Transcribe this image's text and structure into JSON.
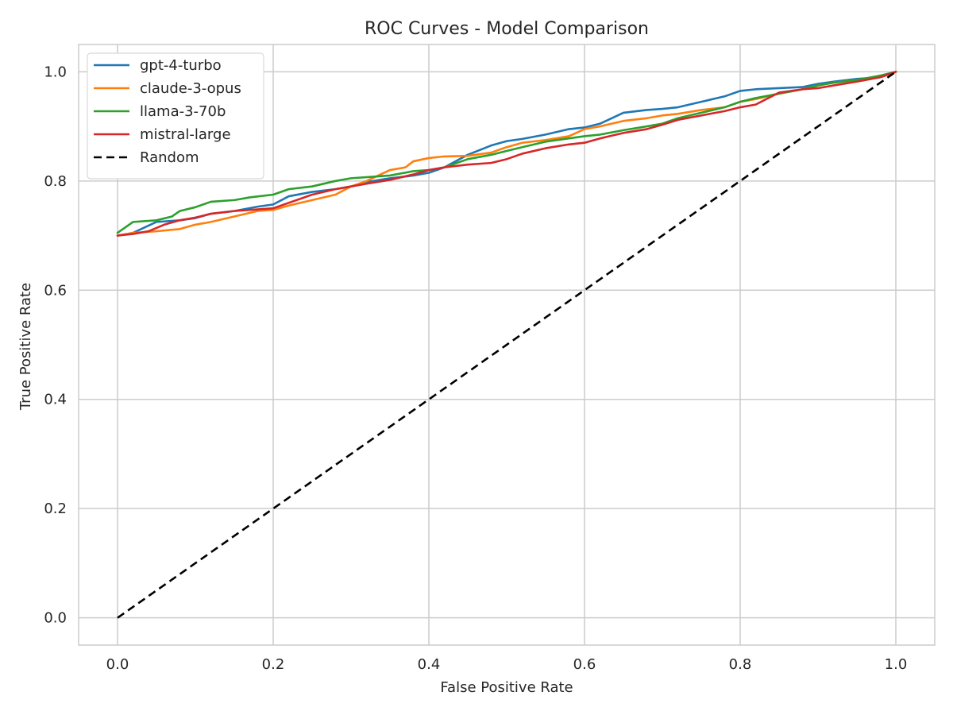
{
  "chart_data": {
    "type": "line",
    "title": "ROC Curves - Model Comparison",
    "xlabel": "False Positive Rate",
    "ylabel": "True Positive Rate",
    "xlim": [
      -0.05,
      1.05
    ],
    "ylim": [
      -0.05,
      1.05
    ],
    "xticks": [
      0.0,
      0.2,
      0.4,
      0.6,
      0.8,
      1.0
    ],
    "yticks": [
      0.0,
      0.2,
      0.4,
      0.6,
      0.8,
      1.0
    ],
    "xtick_labels": [
      "0.0",
      "0.2",
      "0.4",
      "0.6",
      "0.8",
      "1.0"
    ],
    "ytick_labels": [
      "0.0",
      "0.2",
      "0.4",
      "0.6",
      "0.8",
      "1.0"
    ],
    "grid": true,
    "legend_position": "top-left",
    "series": [
      {
        "name": "gpt-4-turbo",
        "color": "#1f77b4",
        "style": "solid",
        "x": [
          0.0,
          0.02,
          0.05,
          0.08,
          0.1,
          0.12,
          0.15,
          0.18,
          0.2,
          0.22,
          0.25,
          0.28,
          0.3,
          0.32,
          0.35,
          0.38,
          0.4,
          0.42,
          0.45,
          0.48,
          0.5,
          0.52,
          0.55,
          0.58,
          0.6,
          0.62,
          0.65,
          0.68,
          0.7,
          0.72,
          0.75,
          0.78,
          0.8,
          0.82,
          0.85,
          0.88,
          0.9,
          0.92,
          0.95,
          0.98,
          1.0
        ],
        "y": [
          0.7,
          0.705,
          0.725,
          0.728,
          0.732,
          0.74,
          0.745,
          0.753,
          0.757,
          0.772,
          0.78,
          0.785,
          0.79,
          0.798,
          0.805,
          0.81,
          0.815,
          0.825,
          0.848,
          0.865,
          0.873,
          0.877,
          0.885,
          0.895,
          0.898,
          0.905,
          0.925,
          0.93,
          0.932,
          0.935,
          0.945,
          0.955,
          0.965,
          0.968,
          0.97,
          0.972,
          0.978,
          0.982,
          0.987,
          0.99,
          1.0
        ]
      },
      {
        "name": "claude-3-opus",
        "color": "#ff7f0e",
        "style": "solid",
        "x": [
          0.0,
          0.02,
          0.05,
          0.08,
          0.1,
          0.12,
          0.15,
          0.18,
          0.2,
          0.22,
          0.25,
          0.28,
          0.3,
          0.32,
          0.35,
          0.37,
          0.38,
          0.4,
          0.42,
          0.45,
          0.48,
          0.5,
          0.52,
          0.55,
          0.58,
          0.6,
          0.62,
          0.65,
          0.68,
          0.7,
          0.72,
          0.75,
          0.78,
          0.8,
          0.82,
          0.85,
          0.88,
          0.9,
          0.92,
          0.95,
          0.98,
          1.0
        ],
        "y": [
          0.7,
          0.705,
          0.708,
          0.712,
          0.72,
          0.725,
          0.735,
          0.745,
          0.747,
          0.755,
          0.765,
          0.775,
          0.79,
          0.8,
          0.82,
          0.825,
          0.836,
          0.842,
          0.845,
          0.846,
          0.852,
          0.862,
          0.87,
          0.875,
          0.882,
          0.895,
          0.9,
          0.91,
          0.915,
          0.92,
          0.923,
          0.93,
          0.935,
          0.945,
          0.95,
          0.96,
          0.968,
          0.975,
          0.98,
          0.985,
          0.99,
          1.0
        ]
      },
      {
        "name": "llama-3-70b",
        "color": "#2ca02c",
        "style": "solid",
        "x": [
          0.0,
          0.02,
          0.05,
          0.07,
          0.08,
          0.1,
          0.12,
          0.15,
          0.17,
          0.2,
          0.22,
          0.25,
          0.28,
          0.3,
          0.33,
          0.35,
          0.38,
          0.4,
          0.42,
          0.45,
          0.48,
          0.5,
          0.52,
          0.55,
          0.58,
          0.6,
          0.62,
          0.65,
          0.68,
          0.7,
          0.72,
          0.75,
          0.78,
          0.8,
          0.82,
          0.85,
          0.88,
          0.9,
          0.92,
          0.95,
          0.98,
          1.0
        ],
        "y": [
          0.705,
          0.725,
          0.728,
          0.735,
          0.745,
          0.752,
          0.762,
          0.765,
          0.77,
          0.775,
          0.785,
          0.79,
          0.8,
          0.805,
          0.808,
          0.81,
          0.818,
          0.82,
          0.825,
          0.84,
          0.848,
          0.855,
          0.862,
          0.872,
          0.878,
          0.882,
          0.885,
          0.893,
          0.9,
          0.905,
          0.915,
          0.925,
          0.935,
          0.945,
          0.952,
          0.96,
          0.968,
          0.975,
          0.98,
          0.985,
          0.993,
          1.0
        ]
      },
      {
        "name": "mistral-large",
        "color": "#d62728",
        "style": "solid",
        "x": [
          0.0,
          0.02,
          0.04,
          0.06,
          0.08,
          0.1,
          0.12,
          0.15,
          0.18,
          0.2,
          0.22,
          0.25,
          0.28,
          0.3,
          0.32,
          0.35,
          0.38,
          0.4,
          0.42,
          0.45,
          0.48,
          0.5,
          0.52,
          0.55,
          0.58,
          0.6,
          0.62,
          0.65,
          0.68,
          0.7,
          0.72,
          0.75,
          0.78,
          0.8,
          0.82,
          0.85,
          0.88,
          0.9,
          0.92,
          0.95,
          0.98,
          1.0
        ],
        "y": [
          0.7,
          0.703,
          0.708,
          0.72,
          0.728,
          0.733,
          0.74,
          0.745,
          0.748,
          0.75,
          0.76,
          0.775,
          0.785,
          0.79,
          0.795,
          0.802,
          0.812,
          0.82,
          0.825,
          0.83,
          0.833,
          0.84,
          0.85,
          0.86,
          0.867,
          0.87,
          0.878,
          0.888,
          0.895,
          0.903,
          0.912,
          0.92,
          0.928,
          0.935,
          0.94,
          0.962,
          0.968,
          0.97,
          0.975,
          0.982,
          0.99,
          1.0
        ]
      },
      {
        "name": "Random",
        "color": "#000000",
        "style": "dashed",
        "x": [
          0.0,
          1.0
        ],
        "y": [
          0.0,
          1.0
        ]
      }
    ]
  }
}
